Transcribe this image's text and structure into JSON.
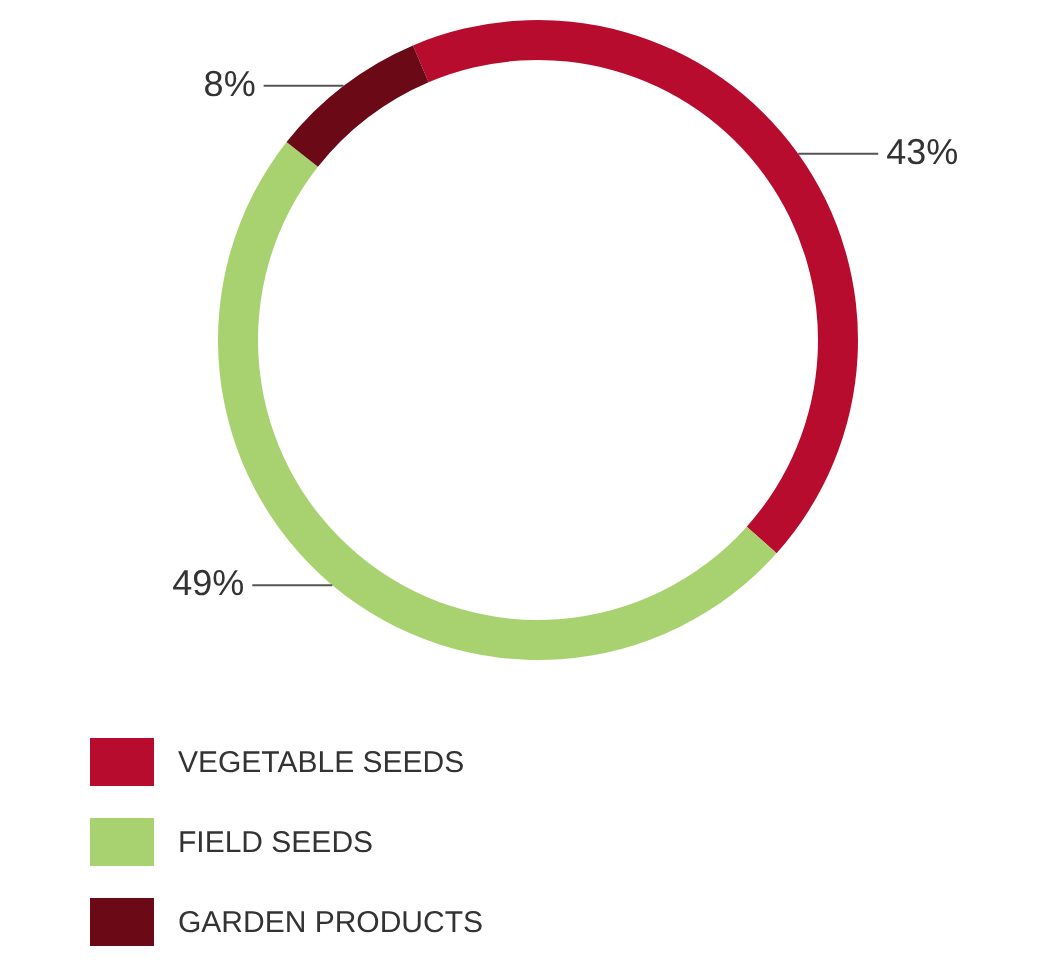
{
  "chart_data": {
    "type": "donut",
    "categories": [
      "VEGETABLE SEEDS",
      "FIELD SEEDS",
      "GARDEN PRODUCTS"
    ],
    "values": [
      43,
      49,
      8
    ],
    "colors": [
      "#b80c2f",
      "#a8d26f",
      "#6b0a16"
    ],
    "value_labels": [
      "43%",
      "49%",
      "8%"
    ],
    "legend": "bottom left"
  }
}
